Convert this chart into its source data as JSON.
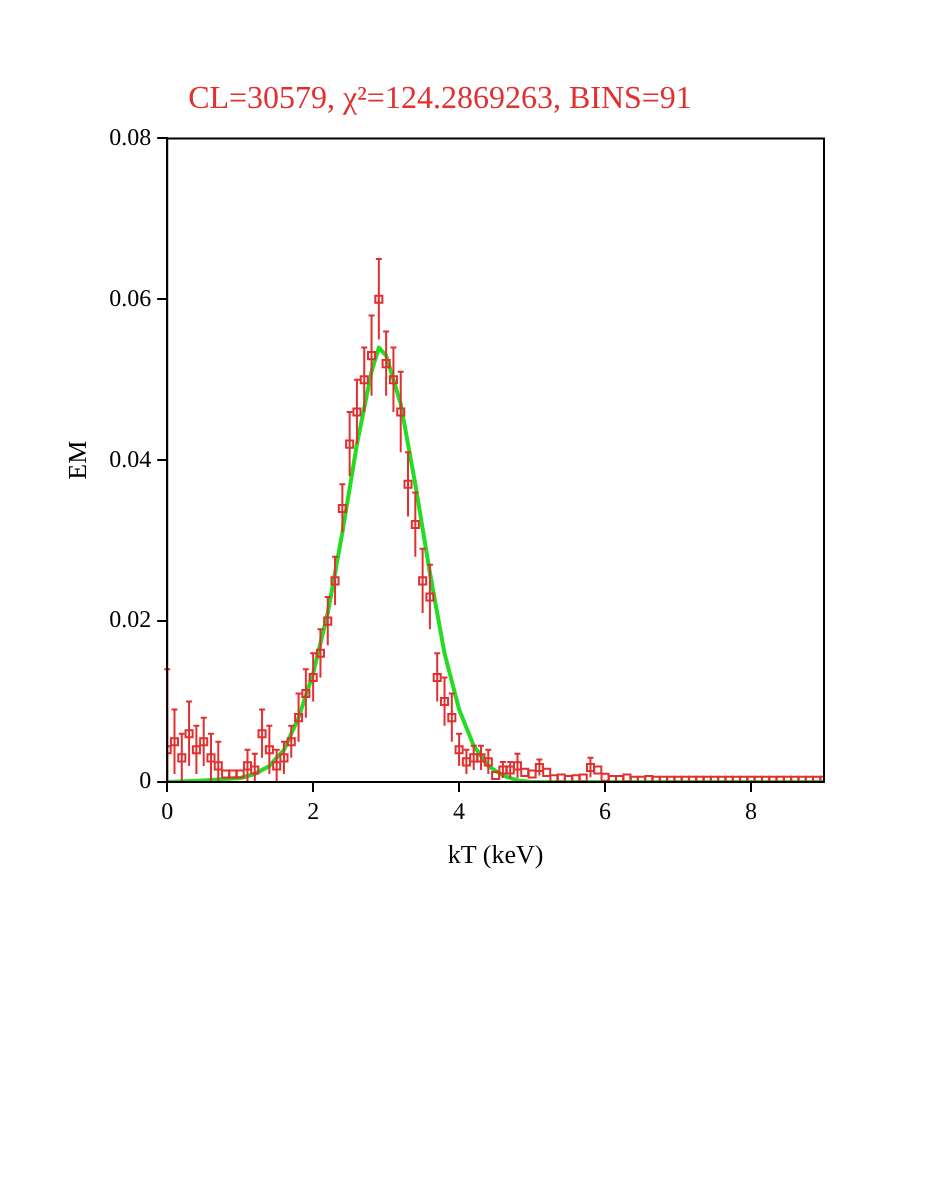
{
  "chart_data": {
    "type": "scatter",
    "title": "CL=30579, χ²=124.2869263, BINS=91",
    "xlabel": "kT (keV)",
    "ylabel": "EM",
    "xlim": [
      0,
      9
    ],
    "xticks": [
      0,
      2,
      4,
      6,
      8
    ],
    "ylim": [
      0,
      0.08
    ],
    "yticks": [
      0,
      0.02,
      0.04,
      0.06,
      0.08
    ],
    "grid": false,
    "legend": false,
    "marker": "square",
    "series": [
      {
        "color": "#e03030",
        "x": [
          0.0,
          0.1,
          0.2,
          0.3,
          0.4,
          0.5,
          0.6,
          0.7,
          0.8,
          0.9,
          1.0,
          1.1,
          1.2,
          1.3,
          1.4,
          1.5,
          1.6,
          1.7,
          1.8,
          1.9,
          2.0,
          2.1,
          2.2,
          2.3,
          2.4,
          2.5,
          2.6,
          2.7,
          2.8,
          2.9,
          3.0,
          3.1,
          3.2,
          3.3,
          3.4,
          3.5,
          3.6,
          3.7,
          3.8,
          3.9,
          4.0,
          4.1,
          4.2,
          4.3,
          4.4,
          4.5,
          4.6,
          4.7,
          4.8,
          4.9,
          5.0,
          5.1,
          5.2,
          5.3,
          5.4,
          5.5,
          5.6,
          5.7,
          5.8,
          5.9,
          6.0,
          6.1,
          6.2,
          6.3,
          6.4,
          6.5,
          6.6,
          6.7,
          6.8,
          6.9,
          7.0,
          7.1,
          7.2,
          7.3,
          7.4,
          7.5,
          7.6,
          7.7,
          7.8,
          7.9,
          8.0,
          8.1,
          8.2,
          8.3,
          8.4,
          8.5,
          8.6,
          8.7,
          8.8,
          8.9,
          9.0
        ],
        "values": [
          0.004,
          0.005,
          0.003,
          0.006,
          0.004,
          0.005,
          0.003,
          0.002,
          0.001,
          0.001,
          0.001,
          0.002,
          0.0015,
          0.006,
          0.004,
          0.002,
          0.003,
          0.005,
          0.008,
          0.011,
          0.013,
          0.016,
          0.02,
          0.025,
          0.034,
          0.042,
          0.046,
          0.05,
          0.053,
          0.06,
          0.052,
          0.05,
          0.046,
          0.037,
          0.032,
          0.025,
          0.023,
          0.013,
          0.01,
          0.008,
          0.004,
          0.0025,
          0.003,
          0.003,
          0.0025,
          0.0008,
          0.0015,
          0.0015,
          0.002,
          0.0012,
          0.001,
          0.0018,
          0.0012,
          0.0004,
          0.0005,
          0.0003,
          0.0004,
          0.0005,
          0.0018,
          0.0015,
          0.0006,
          0.0003,
          0.0003,
          0.0005,
          0.0002,
          0.0002,
          0.0003,
          0.0002,
          0.0002,
          0.0002,
          0.0002,
          0.0002,
          0.0002,
          0.0002,
          0.0002,
          0.0002,
          0.0002,
          0.0002,
          0.0002,
          0.0002,
          0.0002,
          0.0002,
          0.0002,
          0.0002,
          0.0002,
          0.0002,
          0.0002,
          0.0002,
          0.0002,
          0.0002,
          0.0002
        ],
        "errors": [
          [
            0,
            0.014
          ],
          0.004,
          0.003,
          0.004,
          0.003,
          0.003,
          0.003,
          [
            0,
            0.005
          ],
          null,
          null,
          null,
          0.002,
          [
            0,
            0.0035
          ],
          0.003,
          0.003,
          0.002,
          0.002,
          0.002,
          0.003,
          0.003,
          0.003,
          0.003,
          0.003,
          0.003,
          0.003,
          0.004,
          0.004,
          0.004,
          0.005,
          0.005,
          0.004,
          0.004,
          0.005,
          0.004,
          0.004,
          0.004,
          0.004,
          0.003,
          0.003,
          0.003,
          0.002,
          0.0015,
          0.0015,
          0.0015,
          0.0015,
          null,
          0.001,
          0.001,
          0.0015,
          null,
          null,
          0.001,
          null,
          null,
          null,
          null,
          null,
          null,
          0.0012,
          null,
          null,
          null,
          null,
          null,
          null,
          null,
          null,
          null,
          null,
          null,
          null,
          null,
          null,
          null,
          null,
          null,
          null,
          null,
          null,
          null,
          null,
          null,
          null,
          null,
          null,
          null,
          null,
          null,
          null,
          null,
          null
        ]
      },
      {
        "type": "line",
        "color": "#22dd22",
        "marker": "none",
        "x": [
          0,
          0.5,
          1.0,
          1.2,
          1.4,
          1.6,
          1.8,
          2.0,
          2.2,
          2.4,
          2.6,
          2.8,
          2.9,
          3.0,
          3.2,
          3.4,
          3.6,
          3.8,
          4.0,
          4.2,
          4.4,
          4.6,
          4.8,
          5.0,
          6.0,
          7.0,
          8.0,
          9.0
        ],
        "values": [
          0,
          0.0002,
          0.0005,
          0.001,
          0.002,
          0.004,
          0.008,
          0.0135,
          0.021,
          0.031,
          0.042,
          0.051,
          0.054,
          0.053,
          0.047,
          0.037,
          0.026,
          0.016,
          0.009,
          0.0045,
          0.002,
          0.0008,
          0.0002,
          0,
          0,
          0,
          0,
          0
        ]
      }
    ]
  }
}
